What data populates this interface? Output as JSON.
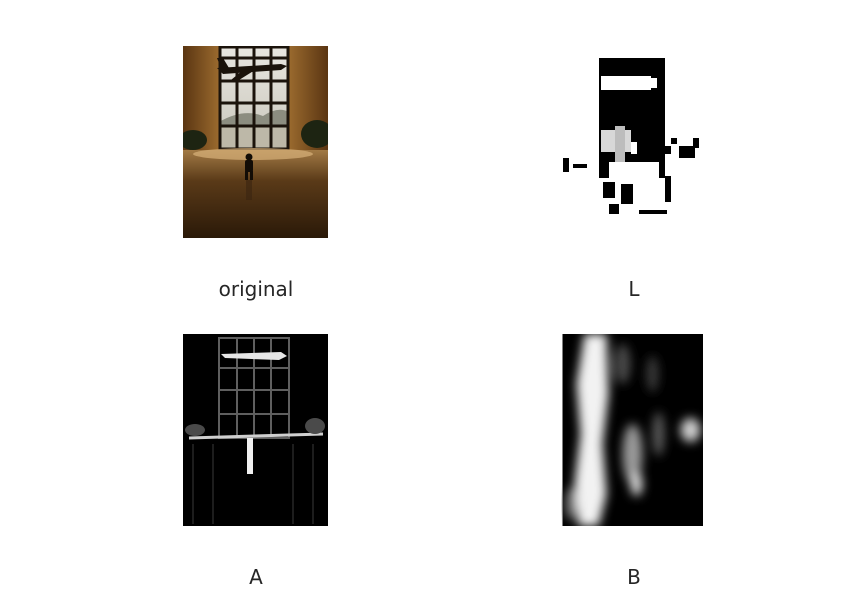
{
  "panels": [
    {
      "id": "original",
      "caption": "original"
    },
    {
      "id": "l",
      "caption": "L"
    },
    {
      "id": "a",
      "caption": "A"
    },
    {
      "id": "b",
      "caption": "B"
    }
  ],
  "colors": {
    "background": "#ffffff",
    "caption_text": "#262626",
    "wall_brown": "#7a4a1c",
    "floor_dark": "#3a220d"
  }
}
